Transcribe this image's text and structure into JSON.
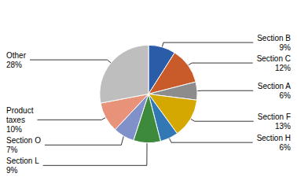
{
  "chart_data": {
    "type": "pie",
    "categories": [
      "Section B",
      "Section C",
      "Section A",
      "Section F",
      "Section H",
      "Section L",
      "Section O",
      "Product\ntaxes",
      "Other"
    ],
    "values": [
      9,
      12,
      6,
      13,
      6,
      9,
      7,
      10,
      28
    ],
    "value_labels": [
      "9%",
      "12%",
      "6%",
      "13%",
      "6%",
      "9%",
      "7%",
      "10%",
      "28%"
    ],
    "colors": [
      "#2b5ca8",
      "#c95a2a",
      "#8c8c8c",
      "#d4a800",
      "#3278b4",
      "#3d8a3d",
      "#8090c8",
      "#e8927a",
      "#bebebe"
    ],
    "data_labels": true
  }
}
